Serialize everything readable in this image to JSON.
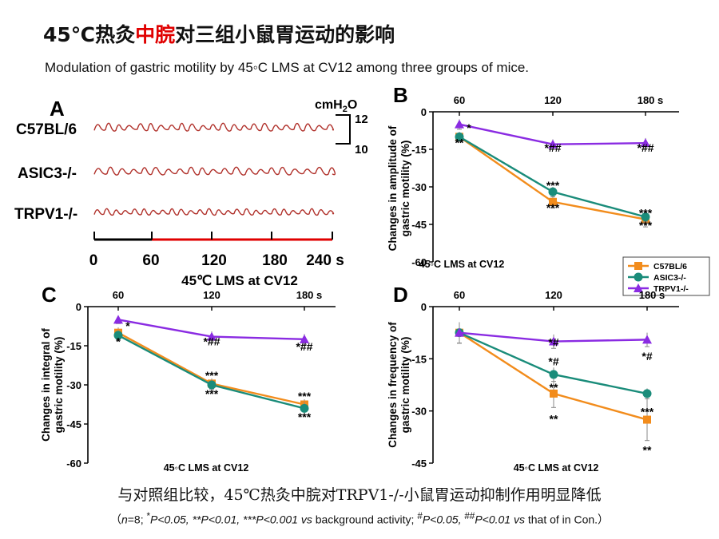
{
  "header": {
    "title_part1": "45℃热灸",
    "title_highlight": "中脘",
    "title_part2": "对三组小鼠胃运动的影响",
    "subtitle": "Modulation of gastric motility by 45◦C LMS at CV12 among three groups of mice."
  },
  "footer": {
    "conclusion": "与对照组比较，45℃热灸中脘对TRPV1-/-小鼠胃运动抑制作用明显降低",
    "n": "n",
    "eq8": "=8; ",
    "sup_star": "*",
    "p1": "P<0.05, **",
    "p2": "P<0.01, ***",
    "p3": "P<0.001 ",
    "vs1": "vs",
    "bg": " background activity; ",
    "sup_hash": "#",
    "p4": "P<0.05, ",
    "sup_dhash": "##",
    "p5": "P<0.01 ",
    "vs2": "vs",
    "tail": " that of in Con.）",
    "open": "（"
  },
  "colors": {
    "C57BL/6": "#f28c1c",
    "ASIC3-/-": "#1a8c7a",
    "TRPV1-/-": "#8a2be2",
    "trace": "#b0302a",
    "time_bar_baseline": "#000000",
    "time_bar_stim": "#e00000"
  },
  "panelA": {
    "label": "A",
    "unit": "cmH2O",
    "scale_top": "12",
    "scale_bottom": "10",
    "traces": [
      "C57BL/6",
      "ASIC3-/-",
      "TRPV1-/-"
    ],
    "time_ticks": [
      "0",
      "60",
      "120",
      "180",
      "240 s"
    ]
  },
  "chart_data": [
    {
      "panel": "B",
      "type": "line",
      "ylabel": "Changes in amplitude of gastric motility (%)",
      "xlabel": "45◦C LMS at CV12",
      "x": [
        60,
        120,
        180
      ],
      "x_tick_labels": [
        "60",
        "120",
        "180 s"
      ],
      "ylim": [
        -60,
        0
      ],
      "yticks": [
        "0",
        "-15",
        "-30",
        "-45",
        "-60"
      ],
      "series": [
        {
          "name": "C57BL/6",
          "marker": "square",
          "values": [
            -10,
            -36,
            -43
          ],
          "err": [
            2,
            2.5,
            3
          ]
        },
        {
          "name": "ASIC3-/-",
          "marker": "circle",
          "values": [
            -10,
            -32,
            -42
          ],
          "err": [
            2,
            2,
            2
          ]
        },
        {
          "name": "TRPV1-/-",
          "marker": "triangle",
          "values": [
            -5,
            -13,
            -12.5
          ],
          "err": [
            2,
            2,
            2
          ]
        }
      ],
      "annotations": [
        {
          "x": 60,
          "y": -6,
          "text": "*"
        },
        {
          "x": 60,
          "y": -12,
          "text": "**"
        },
        {
          "x": 120,
          "y": -14,
          "text": "*##"
        },
        {
          "x": 120,
          "y": -29,
          "text": "***"
        },
        {
          "x": 120,
          "y": -38,
          "text": "***"
        },
        {
          "x": 180,
          "y": -14,
          "text": "*##"
        },
        {
          "x": 180,
          "y": -40,
          "text": "***"
        },
        {
          "x": 180,
          "y": -45,
          "text": "***"
        }
      ],
      "legend": "bottom-right",
      "legend_entries": [
        "C57BL/6",
        "ASIC3-/-",
        "TRPV1-/-"
      ]
    },
    {
      "panel": "C",
      "type": "line",
      "ylabel": "Changes in integral of gastric motility (%)",
      "xlabel": "45◦C LMS at CV12",
      "x": [
        60,
        120,
        180
      ],
      "x_tick_labels": [
        "60",
        "120",
        "180 s"
      ],
      "ylim": [
        -60,
        0
      ],
      "yticks": [
        "0",
        "-15",
        "-30",
        "-45",
        "-60"
      ],
      "series": [
        {
          "name": "C57BL/6",
          "marker": "square",
          "values": [
            -10,
            -29.5,
            -37.5
          ],
          "err": [
            2,
            2,
            2
          ]
        },
        {
          "name": "ASIC3-/-",
          "marker": "circle",
          "values": [
            -11,
            -30,
            -39
          ],
          "err": [
            2,
            2,
            2.5
          ]
        },
        {
          "name": "TRPV1-/-",
          "marker": "triangle",
          "values": [
            -5,
            -11.5,
            -12.5
          ],
          "err": [
            1.5,
            2,
            2
          ]
        }
      ],
      "annotations": [
        {
          "x": 60,
          "y": -7,
          "text": "*"
        },
        {
          "x": 60,
          "y": -13,
          "text": "*"
        },
        {
          "x": 120,
          "y": -13,
          "text": "*##"
        },
        {
          "x": 120,
          "y": -26,
          "text": "***"
        },
        {
          "x": 120,
          "y": -33,
          "text": "***"
        },
        {
          "x": 180,
          "y": -15,
          "text": "*##"
        },
        {
          "x": 180,
          "y": -34,
          "text": "***"
        },
        {
          "x": 180,
          "y": -42,
          "text": "***"
        }
      ],
      "title": "45℃ LMS at CV12"
    },
    {
      "panel": "D",
      "type": "line",
      "ylabel": "Changes in frequency of gastric motility (%)",
      "xlabel": "45◦C LMS at CV12",
      "x": [
        60,
        120,
        180
      ],
      "x_tick_labels": [
        "60",
        "120",
        "180 s"
      ],
      "ylim": [
        -45,
        0
      ],
      "yticks": [
        "0",
        "-15",
        "-30",
        "-45"
      ],
      "series": [
        {
          "name": "C57BL/6",
          "marker": "square",
          "values": [
            -7.5,
            -25,
            -32.5
          ],
          "err": [
            3,
            4,
            6
          ]
        },
        {
          "name": "ASIC3-/-",
          "marker": "circle",
          "values": [
            -7.5,
            -19.5,
            -25
          ],
          "err": [
            3,
            2,
            1.5
          ]
        },
        {
          "name": "TRPV1-/-",
          "marker": "triangle",
          "values": [
            -7.5,
            -10,
            -9.5
          ],
          "err": [
            3,
            2,
            2
          ]
        }
      ],
      "annotations": [
        {
          "x": 120,
          "y": -10,
          "text": "*#"
        },
        {
          "x": 120,
          "y": -15.5,
          "text": "*#"
        },
        {
          "x": 120,
          "y": -23,
          "text": "**"
        },
        {
          "x": 120,
          "y": -32,
          "text": "**"
        },
        {
          "x": 180,
          "y": -14,
          "text": "*#"
        },
        {
          "x": 180,
          "y": -30,
          "text": "***"
        },
        {
          "x": 180,
          "y": -41,
          "text": "**"
        }
      ]
    }
  ]
}
